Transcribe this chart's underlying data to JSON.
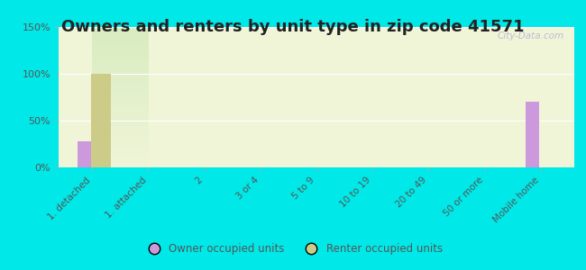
{
  "title": "Owners and renters by unit type in zip code 41571",
  "categories": [
    "1. detached",
    "1. attached",
    "2",
    "3 or 4",
    "5 to 9",
    "10 to 19",
    "20 to 49",
    "50 or more",
    "Mobile home"
  ],
  "owner_values": [
    28,
    0,
    0,
    0,
    0,
    0,
    0,
    0,
    70
  ],
  "renter_values": [
    100,
    0,
    0,
    0,
    0,
    0,
    0,
    0,
    0
  ],
  "owner_color": "#cc99dd",
  "renter_color": "#cccc88",
  "background_outer": "#00e8e8",
  "background_inner_top": "#f0f5d8",
  "background_inner_bottom": "#d8ecc0",
  "ylim": [
    0,
    150
  ],
  "yticks": [
    0,
    50,
    100,
    150
  ],
  "ytick_labels": [
    "0%",
    "50%",
    "100%",
    "150%"
  ],
  "owner_bar_width": 0.25,
  "renter_bar_width": 0.35,
  "legend_owner": "Owner occupied units",
  "legend_renter": "Renter occupied units",
  "title_fontsize": 13,
  "watermark": "City-Data.com"
}
